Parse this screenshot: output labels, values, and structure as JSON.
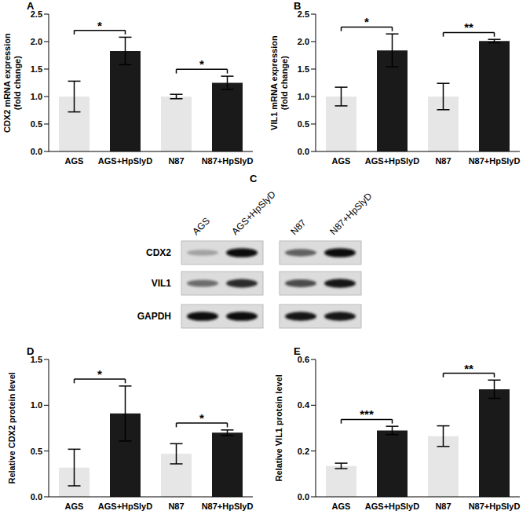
{
  "chart_data": [
    {
      "type": "bar",
      "panel": "A",
      "ylabel": [
        "CDX2 mRNA expression",
        "(fold change)"
      ],
      "categories": [
        "AGS",
        "AGS+HpSlyD",
        "N87",
        "N87+HpSlyD"
      ],
      "values": [
        1.0,
        1.83,
        1.0,
        1.25
      ],
      "errors": [
        0.28,
        0.25,
        0.04,
        0.12
      ],
      "colors": [
        "#e6e6e6",
        "#1a1a1a",
        "#e6e6e6",
        "#1a1a1a"
      ],
      "ylim": [
        0,
        2.5
      ],
      "yticks": [
        {
          "value": 0,
          "label": "0.0"
        },
        0.5,
        {
          "value": 1,
          "label": "1.0"
        },
        1.5,
        {
          "value": 2,
          "label": "2.0"
        },
        2.5
      ],
      "significance": [
        {
          "from": "AGS",
          "to": "AGS+HpSlyD",
          "text": "*"
        },
        {
          "from": "N87",
          "to": "N87+HpSlyD",
          "text": "*"
        }
      ]
    },
    {
      "type": "bar",
      "panel": "B",
      "ylabel": [
        "VIL1 mRNA expression",
        "(fold change)"
      ],
      "categories": [
        "AGS",
        "AGS+HpSlyD",
        "N87",
        "N87+HpSlyD"
      ],
      "values": [
        1.0,
        1.84,
        1.0,
        2.01
      ],
      "errors": [
        0.17,
        0.3,
        0.24,
        0.03
      ],
      "colors": [
        "#e6e6e6",
        "#1a1a1a",
        "#e6e6e6",
        "#1a1a1a"
      ],
      "ylim": [
        0,
        2.5
      ],
      "yticks": [
        {
          "value": 0,
          "label": "0.0"
        },
        0.5,
        {
          "value": 1,
          "label": "1.0"
        },
        1.5,
        {
          "value": 2,
          "label": "2.0"
        },
        2.5
      ],
      "significance": [
        {
          "from": "AGS",
          "to": "AGS+HpSlyD",
          "text": "*"
        },
        {
          "from": "N87",
          "to": "N87+HpSlyD",
          "text": "**"
        }
      ]
    },
    {
      "type": "blot",
      "panel": "C",
      "lanes": [
        "AGS",
        "AGS+HpSlyD",
        "N87",
        "N87+HpSlyD"
      ],
      "bands": [
        {
          "name": "CDX2",
          "intensity": [
            0.25,
            0.95,
            0.55,
            0.95
          ]
        },
        {
          "name": "VIL1",
          "intensity": [
            0.5,
            0.8,
            0.65,
            0.9
          ]
        },
        {
          "name": "GAPDH",
          "intensity": [
            0.95,
            0.95,
            0.9,
            0.9
          ]
        }
      ]
    },
    {
      "type": "bar",
      "panel": "D",
      "ylabel": [
        "Relative CDX2 protein level"
      ],
      "categories": [
        "AGS",
        "AGS+HpSlyD",
        "N87",
        "N87+HpSlyD"
      ],
      "values": [
        0.32,
        0.91,
        0.47,
        0.7
      ],
      "errors": [
        0.2,
        0.3,
        0.11,
        0.03
      ],
      "colors": [
        "#e6e6e6",
        "#1a1a1a",
        "#e6e6e6",
        "#1a1a1a"
      ],
      "ylim": [
        0,
        1.5
      ],
      "yticks": [
        {
          "value": 0,
          "label": "0.0"
        },
        0.5,
        {
          "value": 1,
          "label": "1.0"
        },
        1.5
      ],
      "significance": [
        {
          "from": "AGS",
          "to": "AGS+HpSlyD",
          "text": "*"
        },
        {
          "from": "N87",
          "to": "N87+HpSlyD",
          "text": "*"
        }
      ]
    },
    {
      "type": "bar",
      "panel": "E",
      "ylabel": [
        "Relative VIL1 protein level"
      ],
      "categories": [
        "AGS",
        "AGS+HpSlyD",
        "N87",
        "N87+HpSlyD"
      ],
      "values": [
        0.135,
        0.29,
        0.265,
        0.47
      ],
      "errors": [
        0.012,
        0.018,
        0.045,
        0.04
      ],
      "colors": [
        "#e6e6e6",
        "#1a1a1a",
        "#e6e6e6",
        "#1a1a1a"
      ],
      "ylim": [
        0,
        0.6
      ],
      "yticks": [
        {
          "value": 0,
          "label": "0.0"
        },
        0.2,
        0.4,
        0.6
      ],
      "significance": [
        {
          "from": "AGS",
          "to": "AGS+HpSlyD",
          "text": "***"
        },
        {
          "from": "N87",
          "to": "N87+HpSlyD",
          "text": "**"
        }
      ]
    }
  ]
}
